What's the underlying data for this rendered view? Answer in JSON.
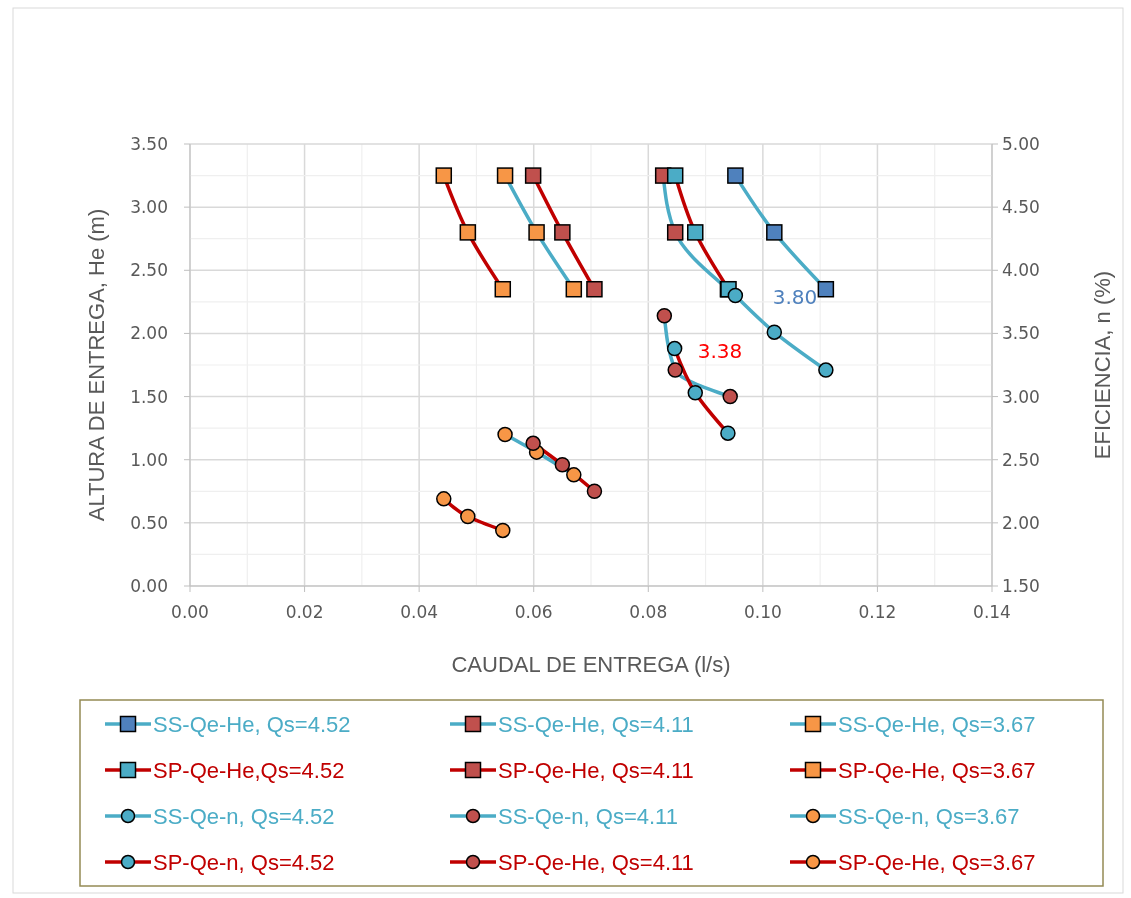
{
  "chart_data": {
    "type": "line",
    "xlabel": "CAUDAL DE ENTREGA (l/s)",
    "ylabel": "ALTURA DE ENTREGA, He (m)",
    "y2label": "EFICIENCIA, n (%)",
    "xlim": [
      0,
      0.14
    ],
    "xticks": [
      {
        "value": 0,
        "label": "0.00"
      },
      {
        "value": 0.02,
        "label": "0.02"
      },
      {
        "value": 0.04,
        "label": "0.04"
      },
      {
        "value": 0.06,
        "label": "0.06"
      },
      {
        "value": 0.08,
        "label": "0.08"
      },
      {
        "value": 0.1,
        "label": "0.10"
      },
      {
        "value": 0.12,
        "label": "0.12"
      },
      {
        "value": 0.14,
        "label": "0.14"
      }
    ],
    "ylim": [
      0,
      3.5
    ],
    "yticks": [
      {
        "value": 0,
        "label": "0.00"
      },
      {
        "value": 0.5,
        "label": "0.50"
      },
      {
        "value": 1,
        "label": "1.00"
      },
      {
        "value": 1.5,
        "label": "1.50"
      },
      {
        "value": 2,
        "label": "2.00"
      },
      {
        "value": 2.5,
        "label": "2.50"
      },
      {
        "value": 3,
        "label": "3.00"
      },
      {
        "value": 3.5,
        "label": "3.50"
      }
    ],
    "y2lim": [
      1.5,
      5
    ],
    "y2ticks": [
      {
        "value": 1.5,
        "label": "1.50"
      },
      {
        "value": 2,
        "label": "2.00"
      },
      {
        "value": 2.5,
        "label": "2.50"
      },
      {
        "value": 3,
        "label": "3.00"
      },
      {
        "value": 3.5,
        "label": "3.50"
      },
      {
        "value": 4,
        "label": "4.00"
      },
      {
        "value": 4.5,
        "label": "4.50"
      },
      {
        "value": 5,
        "label": "5.00"
      }
    ],
    "grid": true,
    "legend": "bottom",
    "series": [
      {
        "name": "SS-Qe-He, Qs=4.52",
        "color": "#4bacc6",
        "colors": [
          "#4f81bd",
          "#4f81bd",
          "#4f81bd"
        ],
        "marker": "square",
        "x": [
          0.0952,
          0.102,
          0.111
        ],
        "values": [
          3.25,
          2.8,
          2.35
        ]
      },
      {
        "name": "SS-Qe-He, Qs=4.11",
        "color": "#4bacc6",
        "colors": [
          "#c0504d",
          "#c0504d",
          "#c0504d"
        ],
        "marker": "square",
        "x": [
          0.0826,
          0.0847,
          0.0939
        ],
        "values": [
          3.25,
          2.8,
          2.35
        ]
      },
      {
        "name": "SS-Qe-He, Qs=3.67",
        "color": "#4bacc6",
        "colors": [
          "#f79646",
          "#f79646",
          "#f79646"
        ],
        "marker": "square",
        "x": [
          0.055,
          0.0605,
          0.067
        ],
        "values": [
          3.25,
          2.8,
          2.35
        ]
      },
      {
        "name": "SP-Qe-He,Qs=4.52",
        "color": "#c00000",
        "colors": [
          "#4bacc6",
          "#4bacc6",
          "#4bacc6"
        ],
        "marker": "square",
        "x": [
          0.0847,
          0.0882,
          0.094
        ],
        "values": [
          3.25,
          2.8,
          2.35
        ]
      },
      {
        "name": "SP-Qe-He, Qs=4.11",
        "color": "#c00000",
        "colors": [
          "#c0504d",
          "#c0504d",
          "#c0504d"
        ],
        "marker": "square",
        "x": [
          0.0599,
          0.065,
          0.0706
        ],
        "values": [
          3.25,
          2.8,
          2.35
        ]
      },
      {
        "name": "SP-Qe-He, Qs=3.67",
        "color": "#c00000",
        "colors": [
          "#f79646",
          "#f79646",
          "#f79646"
        ],
        "marker": "square",
        "x": [
          0.0443,
          0.0485,
          0.0546
        ],
        "values": [
          3.25,
          2.8,
          2.35
        ]
      },
      {
        "name": "SS-Qe-n, Qs=4.52",
        "color": "#4bacc6",
        "colors": [
          "#4bacc6",
          "#4bacc6",
          "#4bacc6"
        ],
        "marker": "circle",
        "axis": "y2",
        "x": [
          0.0952,
          0.102,
          0.111
        ],
        "values": [
          3.8,
          3.51,
          3.21
        ]
      },
      {
        "name": "SS-Qe-n, Qs=4.11",
        "color": "#4bacc6",
        "colors": [
          "#c0504d",
          "#c0504d",
          "#c0504d"
        ],
        "marker": "circle",
        "axis": "y2",
        "x": [
          0.0828,
          0.0847,
          0.0943
        ],
        "values": [
          3.64,
          3.21,
          3.0
        ]
      },
      {
        "name": "SS-Qe-n, Qs=3.67",
        "color": "#4bacc6",
        "colors": [
          "#f79646",
          "#f79646",
          "#f79646"
        ],
        "marker": "circle",
        "axis": "y2",
        "x": [
          0.055,
          0.0605,
          0.067
        ],
        "values": [
          2.7,
          2.56,
          2.38
        ]
      },
      {
        "name": "SP-Qe-n, Qs=4.52",
        "color": "#c00000",
        "colors": [
          "#4bacc6",
          "#4bacc6",
          "#4bacc6"
        ],
        "marker": "circle",
        "axis": "y2",
        "x": [
          0.0846,
          0.0882,
          0.0939
        ],
        "values": [
          3.38,
          3.03,
          2.71
        ]
      },
      {
        "name": "SP-Qe-He, Qs=4.11",
        "color": "#c00000",
        "colors": [
          "#c0504d",
          "#c0504d",
          "#c0504d"
        ],
        "marker": "circle",
        "axis": "y2",
        "x": [
          0.0599,
          0.065,
          0.0706
        ],
        "values": [
          2.63,
          2.46,
          2.25
        ]
      },
      {
        "name": "SP-Qe-He, Qs=3.67",
        "color": "#c00000",
        "colors": [
          "#f79646",
          "#f79646",
          "#f79646"
        ],
        "marker": "circle",
        "axis": "y2",
        "x": [
          0.0443,
          0.0485,
          0.0546
        ],
        "values": [
          2.19,
          2.05,
          1.94
        ]
      }
    ],
    "annotations": [
      "3.80",
      "3.38"
    ]
  }
}
